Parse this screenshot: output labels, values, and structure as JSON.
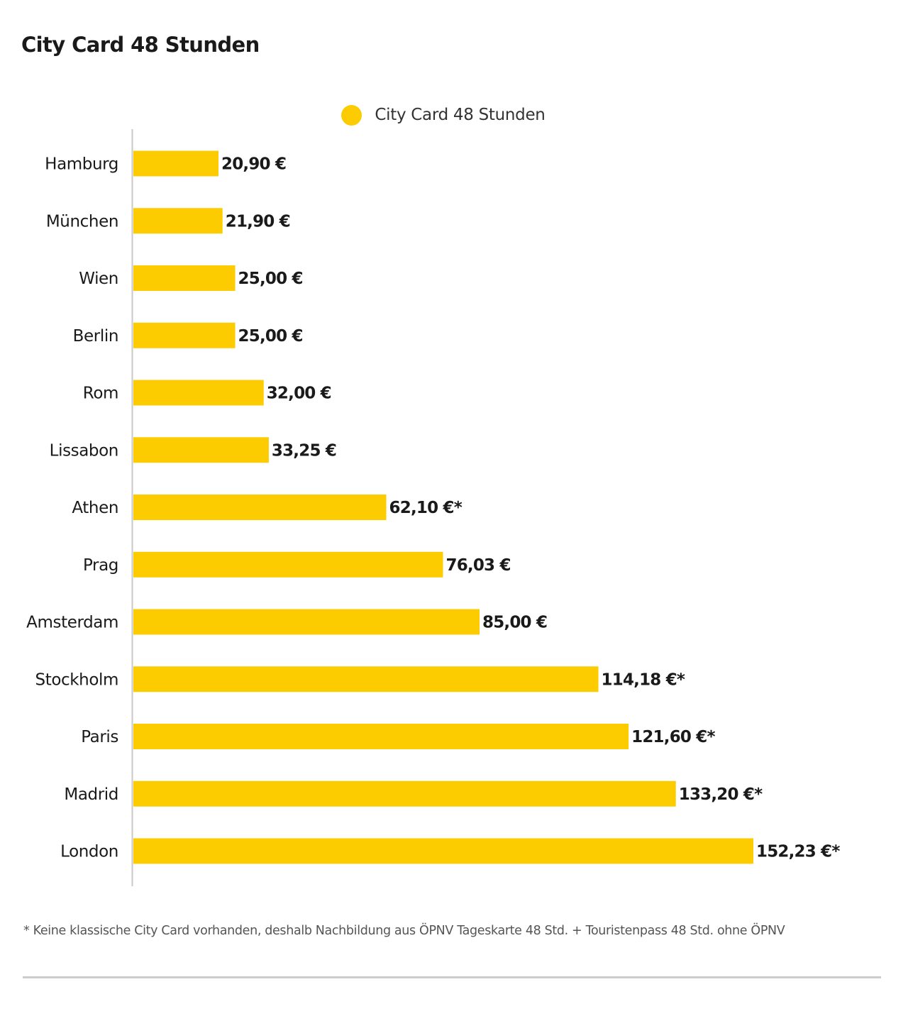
{
  "title": "City Card 48 Stunden",
  "legend": {
    "label": "City Card 48 Stunden",
    "color": "#fccc00"
  },
  "footnote": "* Keine klassische City Card vorhanden, deshalb Nachbildung aus ÖPNV Tageskarte 48 Std. + Touristenpass 48 Std. ohne ÖPNV",
  "chart_data": {
    "type": "bar",
    "orientation": "horizontal",
    "title": "City Card 48 Stunden",
    "xlabel": "",
    "ylabel": "",
    "unit": "€",
    "grid": false,
    "legend_position": "top-center",
    "xlim": [
      0,
      160
    ],
    "bar_color": "#fccc00",
    "categories": [
      "Hamburg",
      "München",
      "Wien",
      "Berlin",
      "Rom",
      "Lissabon",
      "Athen",
      "Prag",
      "Amsterdam",
      "Stockholm",
      "Paris",
      "Madrid",
      "London"
    ],
    "series": [
      {
        "name": "City Card 48 Stunden",
        "values": [
          20.9,
          21.9,
          25.0,
          25.0,
          32.0,
          33.25,
          62.1,
          76.03,
          85.0,
          114.18,
          121.6,
          133.2,
          152.23
        ],
        "labels": [
          "20,90 €",
          "21,90 €",
          "25,00 €",
          "25,00 €",
          "32,00 €",
          "33,25 €",
          "62,10 €*",
          "76,03 €",
          "85,00 €",
          "114,18 €*",
          "121,60 €*",
          "133,20 €*",
          "152,23 €*"
        ]
      }
    ]
  }
}
